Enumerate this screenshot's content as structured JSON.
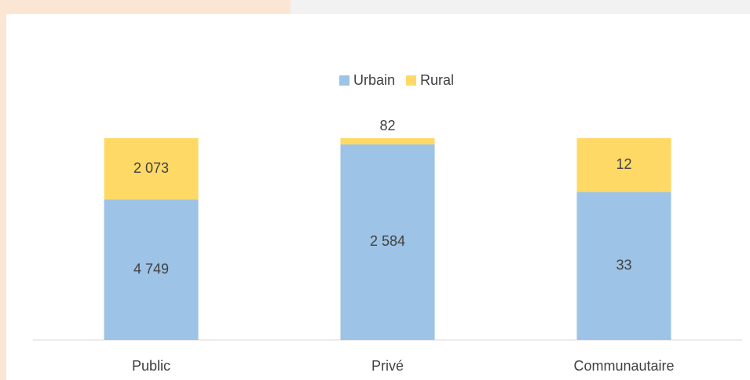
{
  "chart_data": {
    "type": "bar",
    "stacking": "percent",
    "categories": [
      "Public",
      "Privé",
      "Communautaire"
    ],
    "series": [
      {
        "name": "Urbain",
        "color": "#9dc3e6",
        "values": [
          4749,
          2584,
          33
        ],
        "value_labels": [
          "4 749",
          "2 584",
          "33"
        ]
      },
      {
        "name": "Rural",
        "color": "#ffd966",
        "values": [
          2073,
          82,
          12
        ],
        "value_labels": [
          "2 073",
          "82",
          "12"
        ]
      }
    ],
    "legend": "top"
  }
}
